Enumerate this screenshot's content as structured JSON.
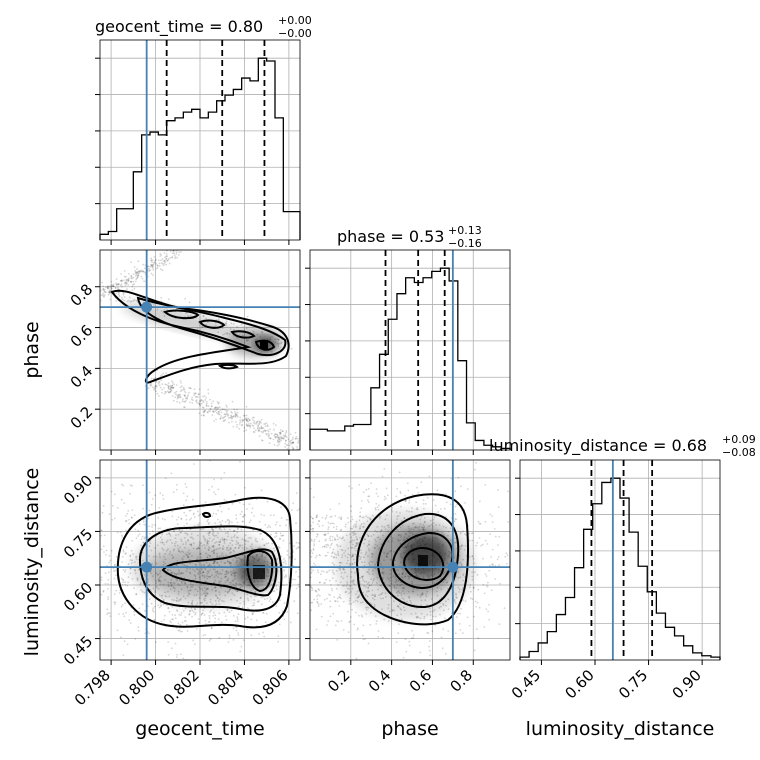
{
  "chart_data": {
    "type": "corner",
    "truth_color": "#4682b4",
    "grid": true,
    "params": [
      {
        "key": "geocent_time",
        "label": "geocent_time",
        "title": "geocent_time = 0.80",
        "title_sup": "+0.00",
        "title_sub": "−0.00",
        "range": [
          0.7975,
          0.8065
        ],
        "ticks": [
          0.798,
          0.8,
          0.802,
          0.804,
          0.806
        ],
        "tick_labels": [
          "0.798",
          "0.800",
          "0.802",
          "0.804",
          "0.806"
        ],
        "truth": 0.7996,
        "quantiles": [
          0.8005,
          0.803,
          0.8049
        ],
        "hist_values": [
          2,
          3,
          11,
          11,
          24,
          37,
          38,
          37,
          42,
          43,
          45,
          46,
          43,
          45,
          49,
          51,
          53,
          57,
          56,
          64,
          63,
          43,
          10,
          10
        ]
      },
      {
        "key": "phase",
        "label": "phase",
        "title": "phase = 0.53",
        "title_sup": "+0.13",
        "title_sub": "−0.16",
        "range": [
          0.0,
          0.98
        ],
        "ticks": [
          0.2,
          0.4,
          0.6,
          0.8
        ],
        "tick_labels": [
          "0.2",
          "0.4",
          "0.6",
          "0.8"
        ],
        "truth": 0.7,
        "quantiles": [
          0.37,
          0.53,
          0.66
        ],
        "hist_values": [
          13,
          13,
          12,
          12,
          15,
          16,
          16,
          39,
          60,
          82,
          98,
          108,
          105,
          108,
          112,
          114,
          106,
          56,
          17,
          6,
          3,
          2,
          1
        ]
      },
      {
        "key": "luminosity_distance",
        "label": "luminosity_distance",
        "title": "luminosity_distance = 0.68",
        "title_sup": "+0.09",
        "title_sub": "−0.08",
        "range": [
          0.39,
          0.95
        ],
        "ticks": [
          0.45,
          0.6,
          0.75,
          0.9
        ],
        "tick_labels": [
          "0.45",
          "0.60",
          "0.75",
          "0.90"
        ],
        "truth": 0.65,
        "quantiles": [
          0.59,
          0.68,
          0.76
        ],
        "hist_values": [
          2,
          6,
          12,
          20,
          32,
          44,
          65,
          92,
          110,
          125,
          128,
          114,
          90,
          66,
          48,
          33,
          23,
          17,
          10,
          5,
          3,
          2
        ]
      }
    ]
  }
}
